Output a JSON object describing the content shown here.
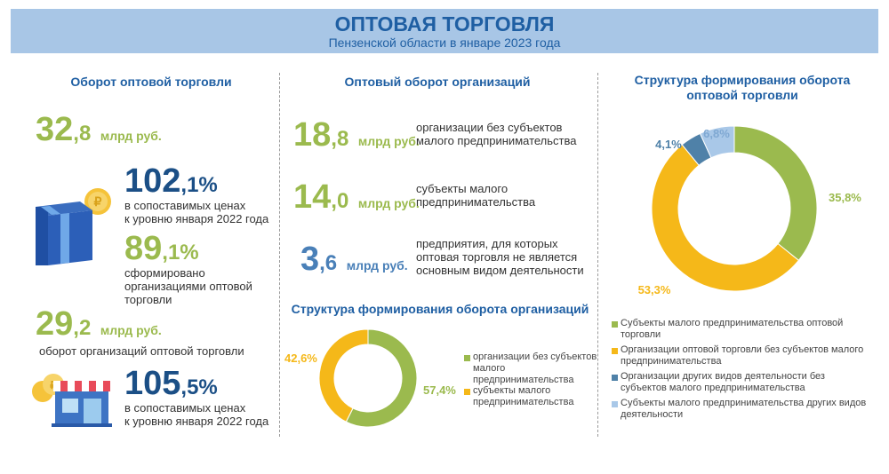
{
  "header": {
    "title": "ОПТОВАЯ ТОРГОВЛЯ",
    "subtitle": "Пензенской области в январе 2023 года"
  },
  "col1": {
    "heading": "Оборот оптовой торговли",
    "turnover": {
      "int": "32",
      "dec": ",8",
      "unit": "млрд руб."
    },
    "index1": {
      "int": "102",
      "dec": ",1%",
      "text1": "в сопоставимых ценах",
      "text2": "к уровню января 2022 года"
    },
    "share": {
      "int": "89",
      "dec": ",1%",
      "text1": "сформировано",
      "text2": "организациями оптовой",
      "text3": "торговли"
    },
    "org_turnover": {
      "int": "29",
      "dec": ",2",
      "unit": "млрд руб.",
      "text": "оборот организаций оптовой торговли"
    },
    "index2": {
      "int": "105",
      "dec": ",5%",
      "text1": "в сопоставимых ценах",
      "text2": "к уровню января 2022 года"
    }
  },
  "col2": {
    "heading": "Оптовый оборот организаций",
    "items": [
      {
        "int": "18",
        "dec": ",8",
        "unit": "млрд руб.",
        "text1": "организации без субъектов",
        "text2": "малого предпринимательства",
        "text3": ""
      },
      {
        "int": "14",
        "dec": ",0",
        "unit": "млрд руб.",
        "text1": "субъекты малого",
        "text2": "предпринимательства",
        "text3": ""
      },
      {
        "int": "3",
        "dec": ",6",
        "unit": "млрд руб.",
        "text1": "предприятия, для которых",
        "text2": "оптовая торговля не является",
        "text3": "основным видом деятельности"
      }
    ],
    "structure_heading": "Структура формирования оборота организаций"
  },
  "col3": {
    "heading1": "Структура формирования оборота",
    "heading2": "оптовой торговли"
  },
  "colors": {
    "green": "#9bba4e",
    "yellow": "#f5b819",
    "steel": "#4f81a8",
    "light": "#a9c8e8"
  },
  "chart_data": [
    {
      "type": "pie",
      "title": "Структура формирования оборота организаций",
      "series": [
        {
          "name": "организации без субъектов малого предпринимательства",
          "value": 57.4,
          "label": "57,4%",
          "color": "#9bba4e"
        },
        {
          "name": "субъекты малого предпринимательства",
          "value": 42.6,
          "label": "42,6%",
          "color": "#f5b819"
        }
      ],
      "legend": [
        {
          "l1": "организации без субъектов",
          "l2": "малого",
          "l3": "предпринимательства"
        },
        {
          "l1": "субъекты малого",
          "l2": "предпринимательства",
          "l3": ""
        }
      ]
    },
    {
      "type": "pie",
      "title": "Структура формирования оборота оптовой торговли",
      "series": [
        {
          "name": "Субъекты малого предпринимательства оптовой торговли",
          "value": 35.8,
          "label": "35,8%",
          "color": "#9bba4e"
        },
        {
          "name": "Организации оптовой торговли без субъектов малого предпринимательства",
          "value": 53.3,
          "label": "53,3%",
          "color": "#f5b819"
        },
        {
          "name": "Организации других видов деятельности без субъектов малого предпринимательства",
          "value": 4.1,
          "label": "4,1%",
          "color": "#4f81a8"
        },
        {
          "name": "Субъекты малого предпринимательства других видов деятельности",
          "value": 6.8,
          "label": "6,8%",
          "color": "#a9c8e8"
        }
      ],
      "legend": [
        {
          "l1": "Субъекты малого предпринимательства оптовой",
          "l2": "торговли"
        },
        {
          "l1": "Организации оптовой торговли без субъектов малого",
          "l2": "предпринимательства"
        },
        {
          "l1": "Организации других видов деятельности без",
          "l2": "субъектов  малого предпринимательства"
        },
        {
          "l1": "Субъекты малого предпринимательства других видов",
          "l2": "деятельности"
        }
      ]
    }
  ]
}
